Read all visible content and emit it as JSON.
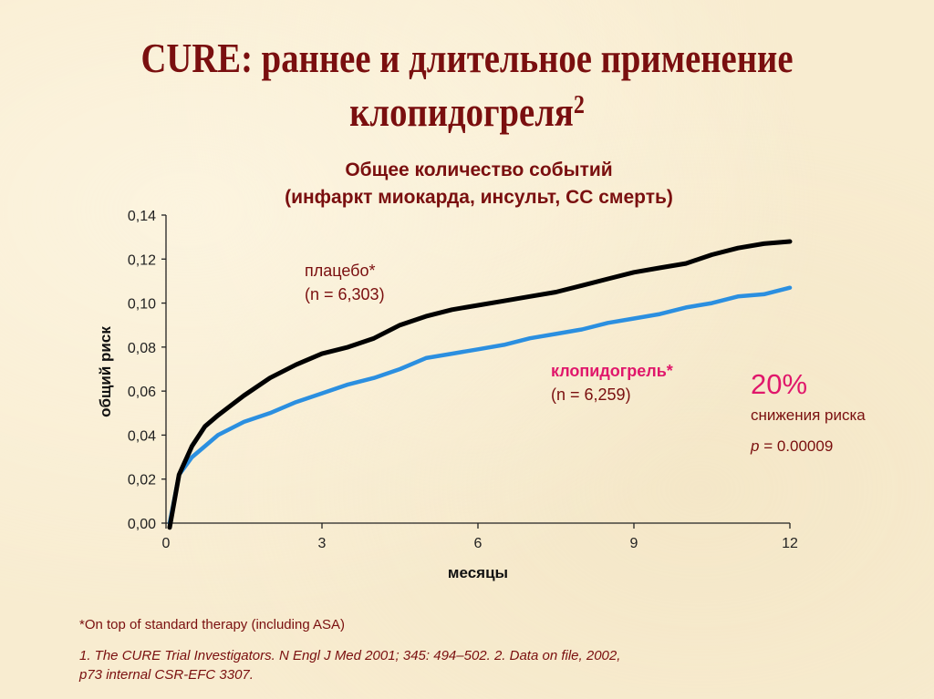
{
  "slide": {
    "title_line1": "CURE: раннее и длительное применение",
    "title_line2": "клопидогреля",
    "title_superscript": "2",
    "chart_title_line1": "Общее количество событий",
    "chart_title_line2": "(инфаркт миокарда, инсульт, СС смерть)",
    "placebo_label": "плацебо*",
    "placebo_n": "(n = 6,303)",
    "clopidogrel_label": "клопидогрель*",
    "clopidogrel_n": "(n = 6,259)",
    "risk_reduction_pct": "20%",
    "risk_reduction_text": "снижения риска",
    "p_label": "p",
    "p_value": " = 0.00009",
    "footnote": "*On top of standard therapy (including ASA)",
    "references_line1": "1. The CURE Trial Investigators. N Engl J Med 2001; 345: 494–502. 2. Data on file, 2002,",
    "references_line2": "p73 internal CSR-EFC 3307.",
    "colors": {
      "title": "#7a0f0f",
      "accent": "#e0176b",
      "placebo_line": "#000000",
      "clopidogrel_line": "#2b8fe0",
      "background": "#f8ecd0"
    }
  },
  "chart_data": {
    "type": "line",
    "title": "Общее количество событий (инфаркт миокарда, инсульт, СС смерть)",
    "xlabel": "месяцы",
    "ylabel": "общий риск",
    "xlim": [
      0,
      12
    ],
    "ylim": [
      0,
      0.14
    ],
    "xticks": [
      "0",
      "3",
      "6",
      "9",
      "12"
    ],
    "yticks": [
      "0,00",
      "0,02",
      "0,04",
      "0,06",
      "0,08",
      "0,10",
      "0,12",
      "0,14"
    ],
    "grid": false,
    "x": [
      0.07,
      0.25,
      0.5,
      0.75,
      1.0,
      1.5,
      2.0,
      2.5,
      3.0,
      3.5,
      4.0,
      4.5,
      5.0,
      5.5,
      6.0,
      6.5,
      7.0,
      7.5,
      8.0,
      8.5,
      9.0,
      9.5,
      10.0,
      10.5,
      11.0,
      11.5,
      12.0
    ],
    "series": [
      {
        "name": "плацебо* (n = 6,303)",
        "color": "#000000",
        "values": [
          -0.002,
          0.022,
          0.035,
          0.044,
          0.049,
          0.058,
          0.066,
          0.072,
          0.077,
          0.08,
          0.084,
          0.09,
          0.094,
          0.097,
          0.099,
          0.101,
          0.103,
          0.105,
          0.108,
          0.111,
          0.114,
          0.116,
          0.118,
          0.122,
          0.125,
          0.127,
          0.128
        ]
      },
      {
        "name": "клопидогрель* (n = 6,259)",
        "color": "#2b8fe0",
        "values": [
          0.0,
          0.022,
          0.03,
          0.035,
          0.04,
          0.046,
          0.05,
          0.055,
          0.059,
          0.063,
          0.066,
          0.07,
          0.075,
          0.077,
          0.079,
          0.081,
          0.084,
          0.086,
          0.088,
          0.091,
          0.093,
          0.095,
          0.098,
          0.1,
          0.103,
          0.104,
          0.107
        ]
      }
    ],
    "annotations": [
      "20% снижения риска",
      "p = 0.00009"
    ]
  }
}
